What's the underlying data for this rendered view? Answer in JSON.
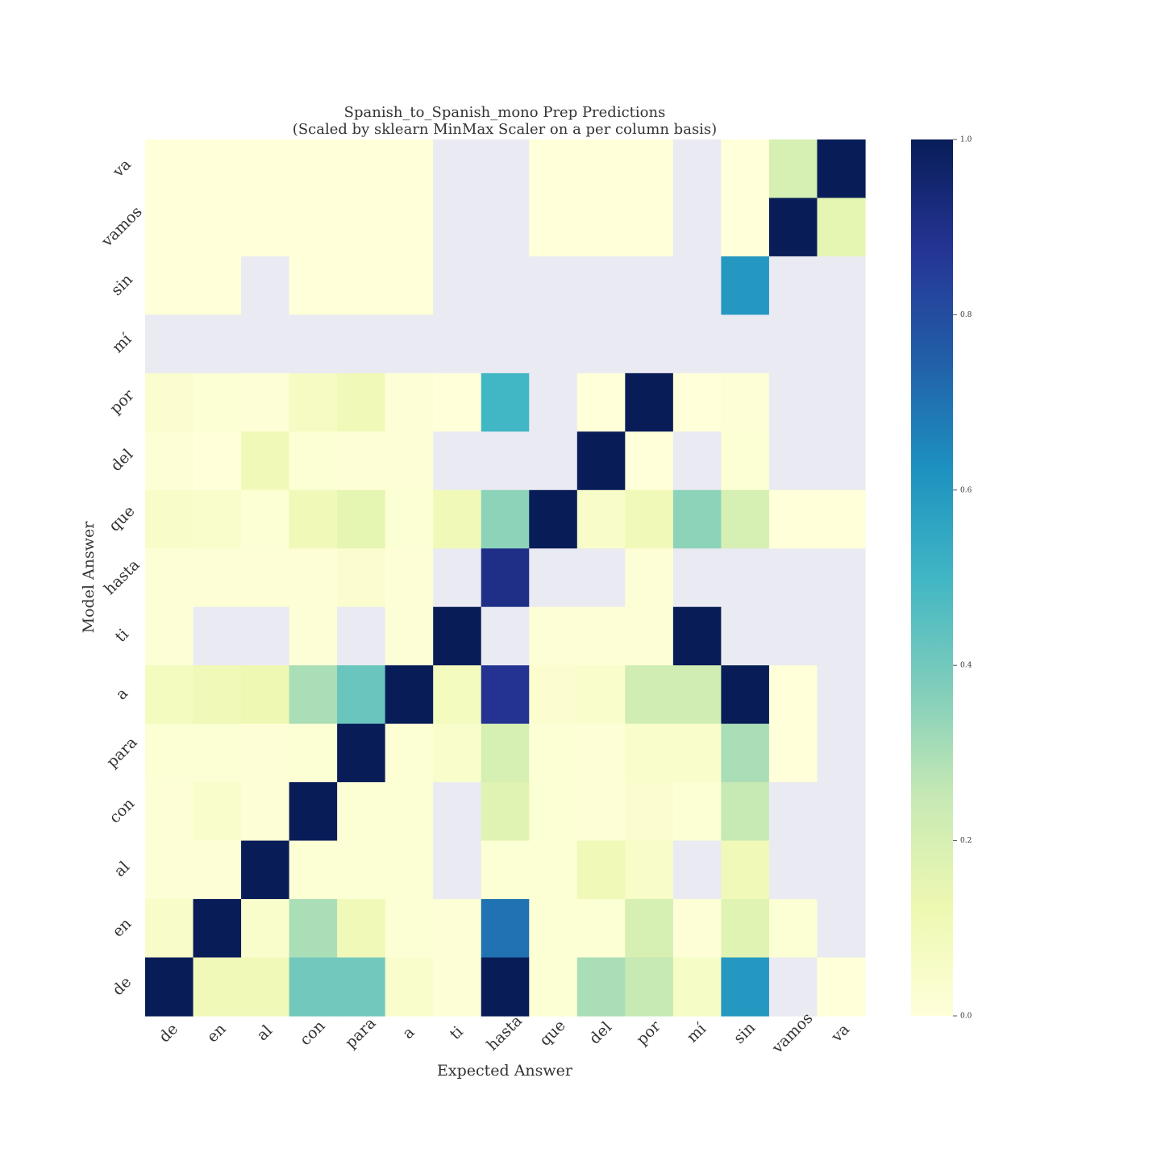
{
  "chart_data": {
    "type": "heatmap",
    "title": "Spanish_to_Spanish_mono Prep Predictions",
    "subtitle": "(Scaled by sklearn MinMax Scaler on a per column basis)",
    "xlabel": "Expected Answer",
    "ylabel": "Model Answer",
    "x_categories": [
      "de",
      "en",
      "al",
      "con",
      "para",
      "a",
      "ti",
      "hasta",
      "que",
      "del",
      "por",
      "mí",
      "sin",
      "vamos",
      "va"
    ],
    "y_categories": [
      "va",
      "vamos",
      "sin",
      "mí",
      "por",
      "del",
      "que",
      "hasta",
      "ti",
      "a",
      "para",
      "con",
      "al",
      "en",
      "de"
    ],
    "values": [
      [
        0.0,
        0.0,
        0.0,
        0.0,
        0.0,
        0.0,
        null,
        null,
        0.0,
        0.0,
        0.0,
        null,
        0.0,
        0.2,
        1.0
      ],
      [
        0.0,
        0.0,
        0.0,
        0.0,
        0.0,
        0.0,
        null,
        null,
        0.0,
        0.0,
        0.0,
        null,
        0.0,
        1.0,
        0.15
      ],
      [
        0.0,
        0.0,
        null,
        0.0,
        0.0,
        0.0,
        null,
        null,
        null,
        null,
        null,
        null,
        0.6,
        null,
        null
      ],
      [
        null,
        null,
        null,
        null,
        null,
        null,
        null,
        null,
        null,
        null,
        null,
        null,
        null,
        null,
        null
      ],
      [
        0.03,
        0.02,
        0.01,
        0.07,
        0.1,
        0.01,
        0.0,
        0.5,
        null,
        0.0,
        1.0,
        0.0,
        0.01,
        null,
        null
      ],
      [
        0.01,
        0.0,
        0.1,
        0.02,
        0.01,
        0.01,
        null,
        null,
        null,
        1.0,
        0.0,
        null,
        0.02,
        null,
        null
      ],
      [
        0.05,
        0.04,
        0.02,
        0.1,
        0.15,
        0.02,
        0.1,
        0.35,
        1.0,
        0.05,
        0.1,
        0.35,
        0.2,
        0.0,
        0.0
      ],
      [
        0.01,
        0.01,
        0.01,
        0.01,
        0.03,
        0.01,
        null,
        0.9,
        null,
        null,
        0.01,
        null,
        null,
        null,
        null
      ],
      [
        0.01,
        null,
        null,
        0.01,
        null,
        0.01,
        1.0,
        null,
        0.01,
        0.01,
        0.01,
        1.0,
        null,
        null,
        null
      ],
      [
        0.08,
        0.1,
        0.12,
        0.3,
        0.42,
        1.0,
        0.08,
        0.88,
        0.03,
        0.04,
        0.22,
        0.22,
        1.0,
        0.0,
        null
      ],
      [
        0.02,
        0.02,
        0.01,
        0.02,
        1.0,
        0.02,
        0.04,
        0.2,
        0.02,
        0.01,
        0.04,
        0.04,
        0.3,
        0.0,
        null
      ],
      [
        0.01,
        0.04,
        0.01,
        1.0,
        0.02,
        0.02,
        null,
        0.17,
        0.02,
        0.01,
        0.03,
        0.02,
        0.25,
        null,
        null
      ],
      [
        0.01,
        0.01,
        1.0,
        0.02,
        0.02,
        0.02,
        null,
        0.02,
        0.02,
        0.1,
        0.05,
        null,
        0.1,
        null,
        null
      ],
      [
        0.05,
        1.0,
        0.04,
        0.3,
        0.1,
        0.02,
        0.01,
        0.7,
        0.02,
        0.02,
        0.2,
        0.01,
        0.17,
        0.02,
        null
      ],
      [
        1.0,
        0.1,
        0.1,
        0.4,
        0.4,
        0.04,
        0.01,
        1.0,
        0.02,
        0.3,
        0.25,
        0.06,
        0.6,
        null,
        0.0
      ]
    ],
    "colormap": "YlGnBu",
    "missing_color": "#eaeaf2",
    "vmin": 0.0,
    "vmax": 1.0,
    "colorbar_ticks": [
      "0.0",
      "0.2",
      "0.4",
      "0.6",
      "0.8",
      "1.0"
    ]
  }
}
